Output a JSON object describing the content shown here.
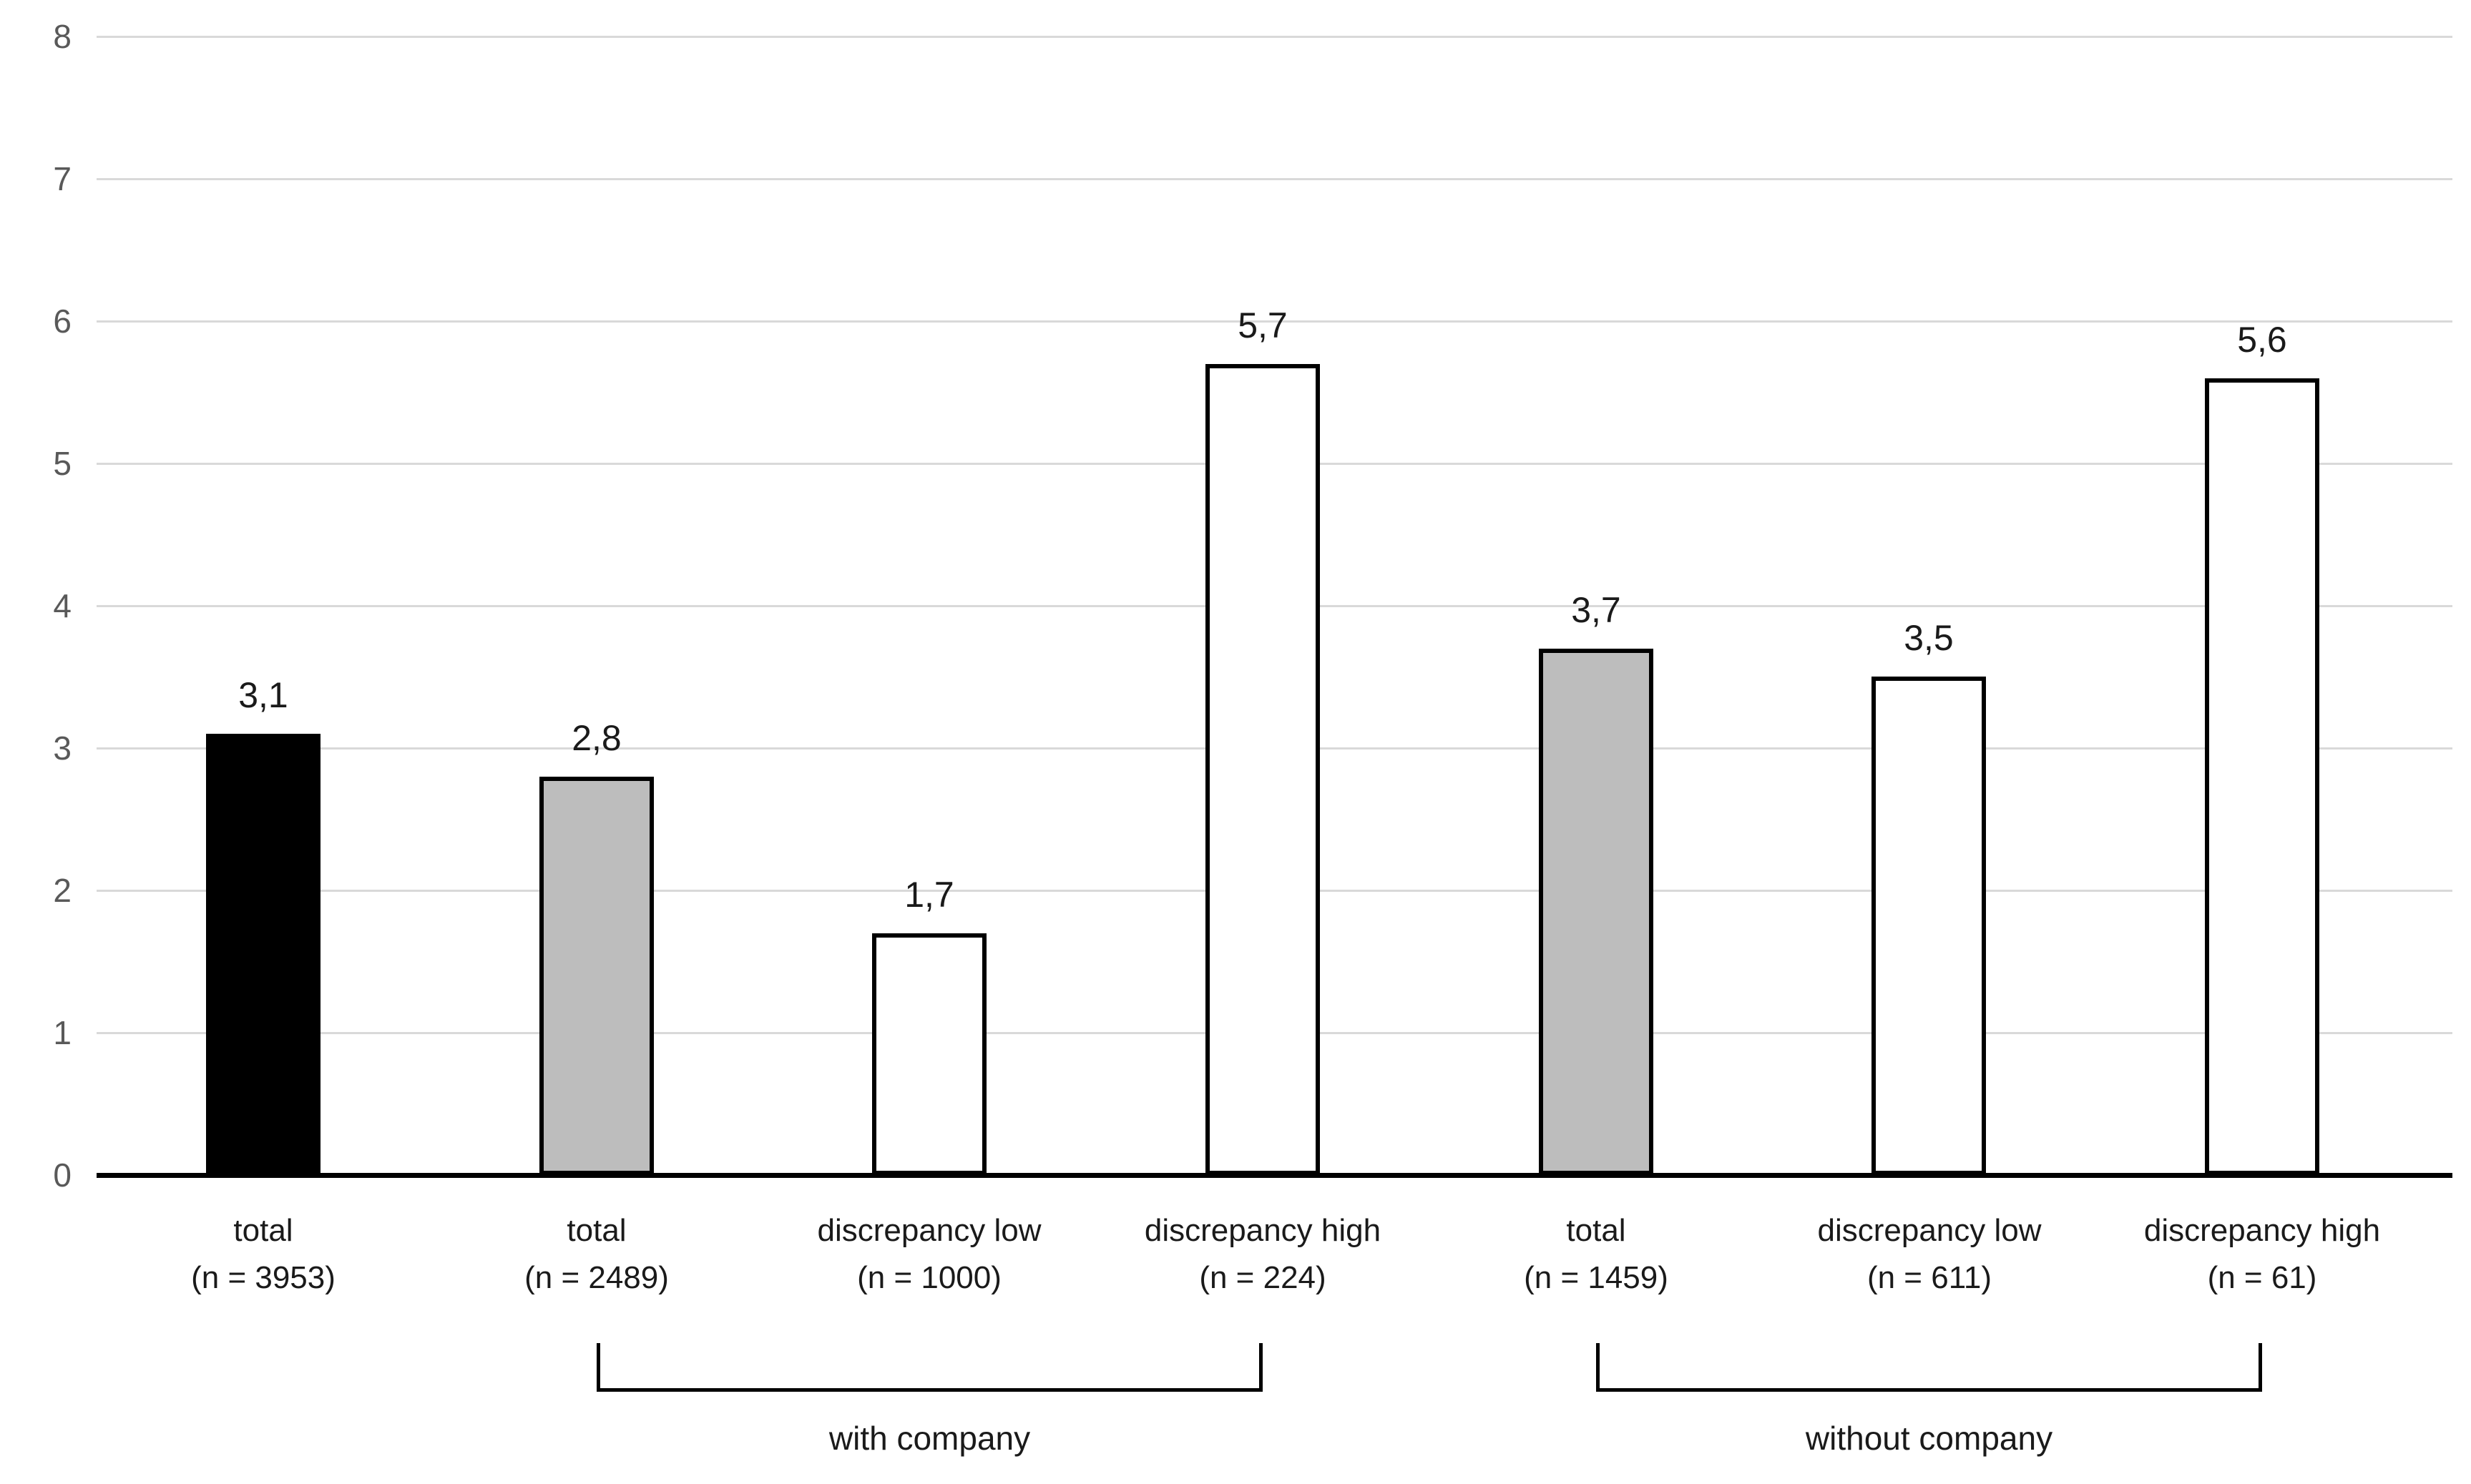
{
  "chart_data": {
    "type": "bar",
    "title": "",
    "ylim": [
      0,
      8
    ],
    "yticks": [
      0,
      1,
      2,
      3,
      4,
      5,
      6,
      7,
      8
    ],
    "grid": true,
    "legend_position": "none",
    "categories": [
      {
        "name": "total",
        "n_label": "(n = 3953)"
      },
      {
        "name": "total",
        "n_label": "(n = 2489)"
      },
      {
        "name": "discrepancy low",
        "n_label": "(n = 1000)"
      },
      {
        "name": "discrepancy high",
        "n_label": "(n = 224)"
      },
      {
        "name": "total",
        "n_label": "(n = 1459)"
      },
      {
        "name": "discrepancy low",
        "n_label": "(n = 611)"
      },
      {
        "name": "discrepancy high",
        "n_label": "(n = 61)"
      }
    ],
    "values": [
      3.1,
      2.8,
      1.7,
      5.7,
      3.7,
      3.5,
      5.6
    ],
    "value_labels": [
      "3,1",
      "2,8",
      "1,7",
      "5,7",
      "3,7",
      "3,5",
      "5,6"
    ],
    "bar_fill_colors": [
      "#000000",
      "#bdbdbd",
      "#ffffff",
      "#ffffff",
      "#bdbdbd",
      "#ffffff",
      "#ffffff"
    ],
    "bar_border_color": "#000000",
    "groups": [
      {
        "label": "with company",
        "from_index": 1,
        "to_index": 3
      },
      {
        "label": "without company",
        "from_index": 4,
        "to_index": 6
      }
    ]
  },
  "colors": {
    "background": "#ffffff",
    "gridline": "#d9d9d9",
    "axis_line": "#000000",
    "tick_label_color": "#595959",
    "text_color": "#1a1a1a"
  }
}
